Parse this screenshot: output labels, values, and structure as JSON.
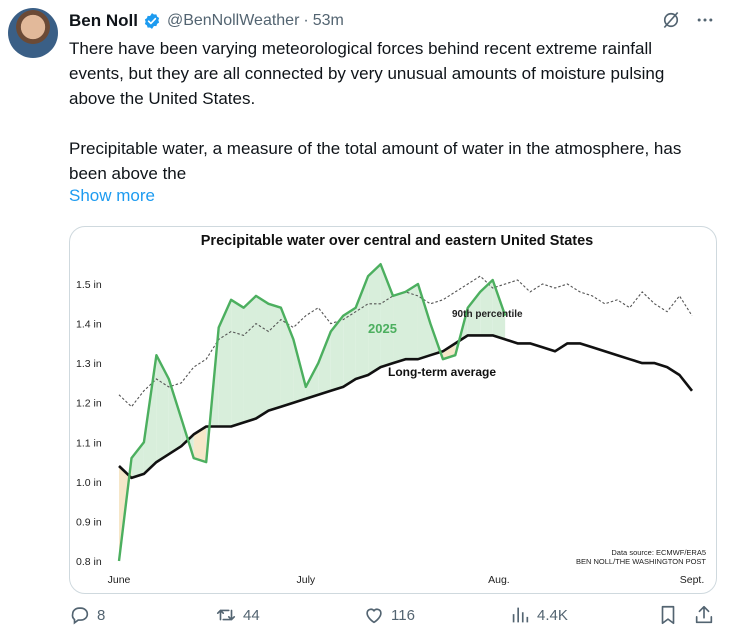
{
  "post": {
    "author_name": "Ben Noll",
    "handle": "@BenNollWeather",
    "separator": "·",
    "time": "53m",
    "text_paragraph_1": "There have been varying meteorological forces behind recent extreme rainfall events, but they are all connected by very unusual amounts of moisture pulsing above the United States.",
    "text_paragraph_2": "Precipitable water, a measure of the total amount of water in the atmosphere, has been above the",
    "show_more": "Show more"
  },
  "icons": {
    "verified": "verified-badge-icon",
    "grok": "grok-icon",
    "more": "more-icon",
    "reply": "reply-icon",
    "retweet": "retweet-icon",
    "like": "heart-icon",
    "views": "views-icon",
    "bookmark": "bookmark-icon",
    "share": "share-icon"
  },
  "actions": {
    "replies": "8",
    "retweets": "44",
    "likes": "116",
    "views": "4.4K"
  },
  "colors": {
    "accent": "#1d9bf0",
    "series_2025": "#4caf5f",
    "area_above": "#d8eedb",
    "area_below": "#f6e7c9",
    "average": "#111111",
    "percentile": "#555555"
  },
  "chart_data": {
    "type": "line",
    "title": "Precipitable water over central and eastern United States",
    "x_tick_labels": [
      "June",
      "July",
      "Aug.",
      "Sept."
    ],
    "y_ticks": [
      0.8,
      0.9,
      1.0,
      1.1,
      1.2,
      1.3,
      1.4,
      1.5
    ],
    "y_tick_labels": [
      "0.8 in",
      "0.9 in",
      "1.0 in",
      "1.1 in",
      "1.2 in",
      "1.3 in",
      "1.4 in",
      "1.5 in"
    ],
    "ylim": [
      0.8,
      1.5
    ],
    "xlim": [
      0,
      92
    ],
    "grid": false,
    "labels": {
      "year": "2025",
      "average": "Long-term average",
      "percentile": "90th percentile"
    },
    "source_lines": [
      "Data source: ECMWF/ERA5",
      "BEN NOLL/THE WASHINGTON POST"
    ],
    "series": [
      {
        "name": "2025",
        "x": [
          0,
          2,
          4,
          6,
          8,
          10,
          12,
          14,
          16,
          18,
          20,
          22,
          24,
          26,
          28,
          30,
          32,
          34,
          36,
          38,
          40,
          42,
          44,
          46,
          48,
          50,
          52,
          54,
          56,
          58,
          60,
          62
        ],
        "values": [
          0.8,
          1.06,
          1.1,
          1.32,
          1.26,
          1.16,
          1.06,
          1.05,
          1.39,
          1.46,
          1.44,
          1.47,
          1.45,
          1.44,
          1.36,
          1.24,
          1.3,
          1.38,
          1.42,
          1.44,
          1.52,
          1.55,
          1.47,
          1.48,
          1.5,
          1.4,
          1.31,
          1.32,
          1.44,
          1.48,
          1.51,
          1.42
        ]
      },
      {
        "name": "Long-term average",
        "x": [
          0,
          2,
          4,
          6,
          8,
          10,
          12,
          14,
          16,
          18,
          20,
          22,
          24,
          26,
          28,
          30,
          32,
          34,
          36,
          38,
          40,
          42,
          44,
          46,
          48,
          50,
          52,
          54,
          56,
          58,
          60,
          62,
          64,
          66,
          68,
          70,
          72,
          74,
          76,
          78,
          80,
          82,
          84,
          86,
          88,
          90,
          92
        ],
        "values": [
          1.04,
          1.01,
          1.02,
          1.05,
          1.07,
          1.09,
          1.12,
          1.14,
          1.14,
          1.14,
          1.15,
          1.16,
          1.18,
          1.19,
          1.2,
          1.21,
          1.22,
          1.23,
          1.24,
          1.26,
          1.27,
          1.29,
          1.3,
          1.31,
          1.31,
          1.32,
          1.33,
          1.35,
          1.37,
          1.37,
          1.37,
          1.36,
          1.35,
          1.35,
          1.34,
          1.33,
          1.35,
          1.35,
          1.34,
          1.33,
          1.32,
          1.31,
          1.3,
          1.3,
          1.29,
          1.27,
          1.23
        ]
      },
      {
        "name": "90th percentile",
        "x": [
          0,
          2,
          4,
          6,
          8,
          10,
          12,
          14,
          16,
          18,
          20,
          22,
          24,
          26,
          28,
          30,
          32,
          34,
          36,
          38,
          40,
          42,
          44,
          46,
          48,
          50,
          52,
          54,
          56,
          58,
          60,
          62,
          64,
          66,
          68,
          70,
          72,
          74,
          76,
          78,
          80,
          82,
          84,
          86,
          88,
          90,
          92
        ],
        "values": [
          1.22,
          1.19,
          1.23,
          1.26,
          1.24,
          1.25,
          1.29,
          1.31,
          1.36,
          1.38,
          1.37,
          1.4,
          1.38,
          1.41,
          1.39,
          1.42,
          1.44,
          1.4,
          1.41,
          1.43,
          1.45,
          1.45,
          1.47,
          1.48,
          1.47,
          1.45,
          1.46,
          1.48,
          1.5,
          1.52,
          1.49,
          1.5,
          1.51,
          1.48,
          1.5,
          1.49,
          1.5,
          1.48,
          1.47,
          1.45,
          1.46,
          1.44,
          1.48,
          1.45,
          1.43,
          1.47,
          1.42
        ]
      }
    ]
  }
}
